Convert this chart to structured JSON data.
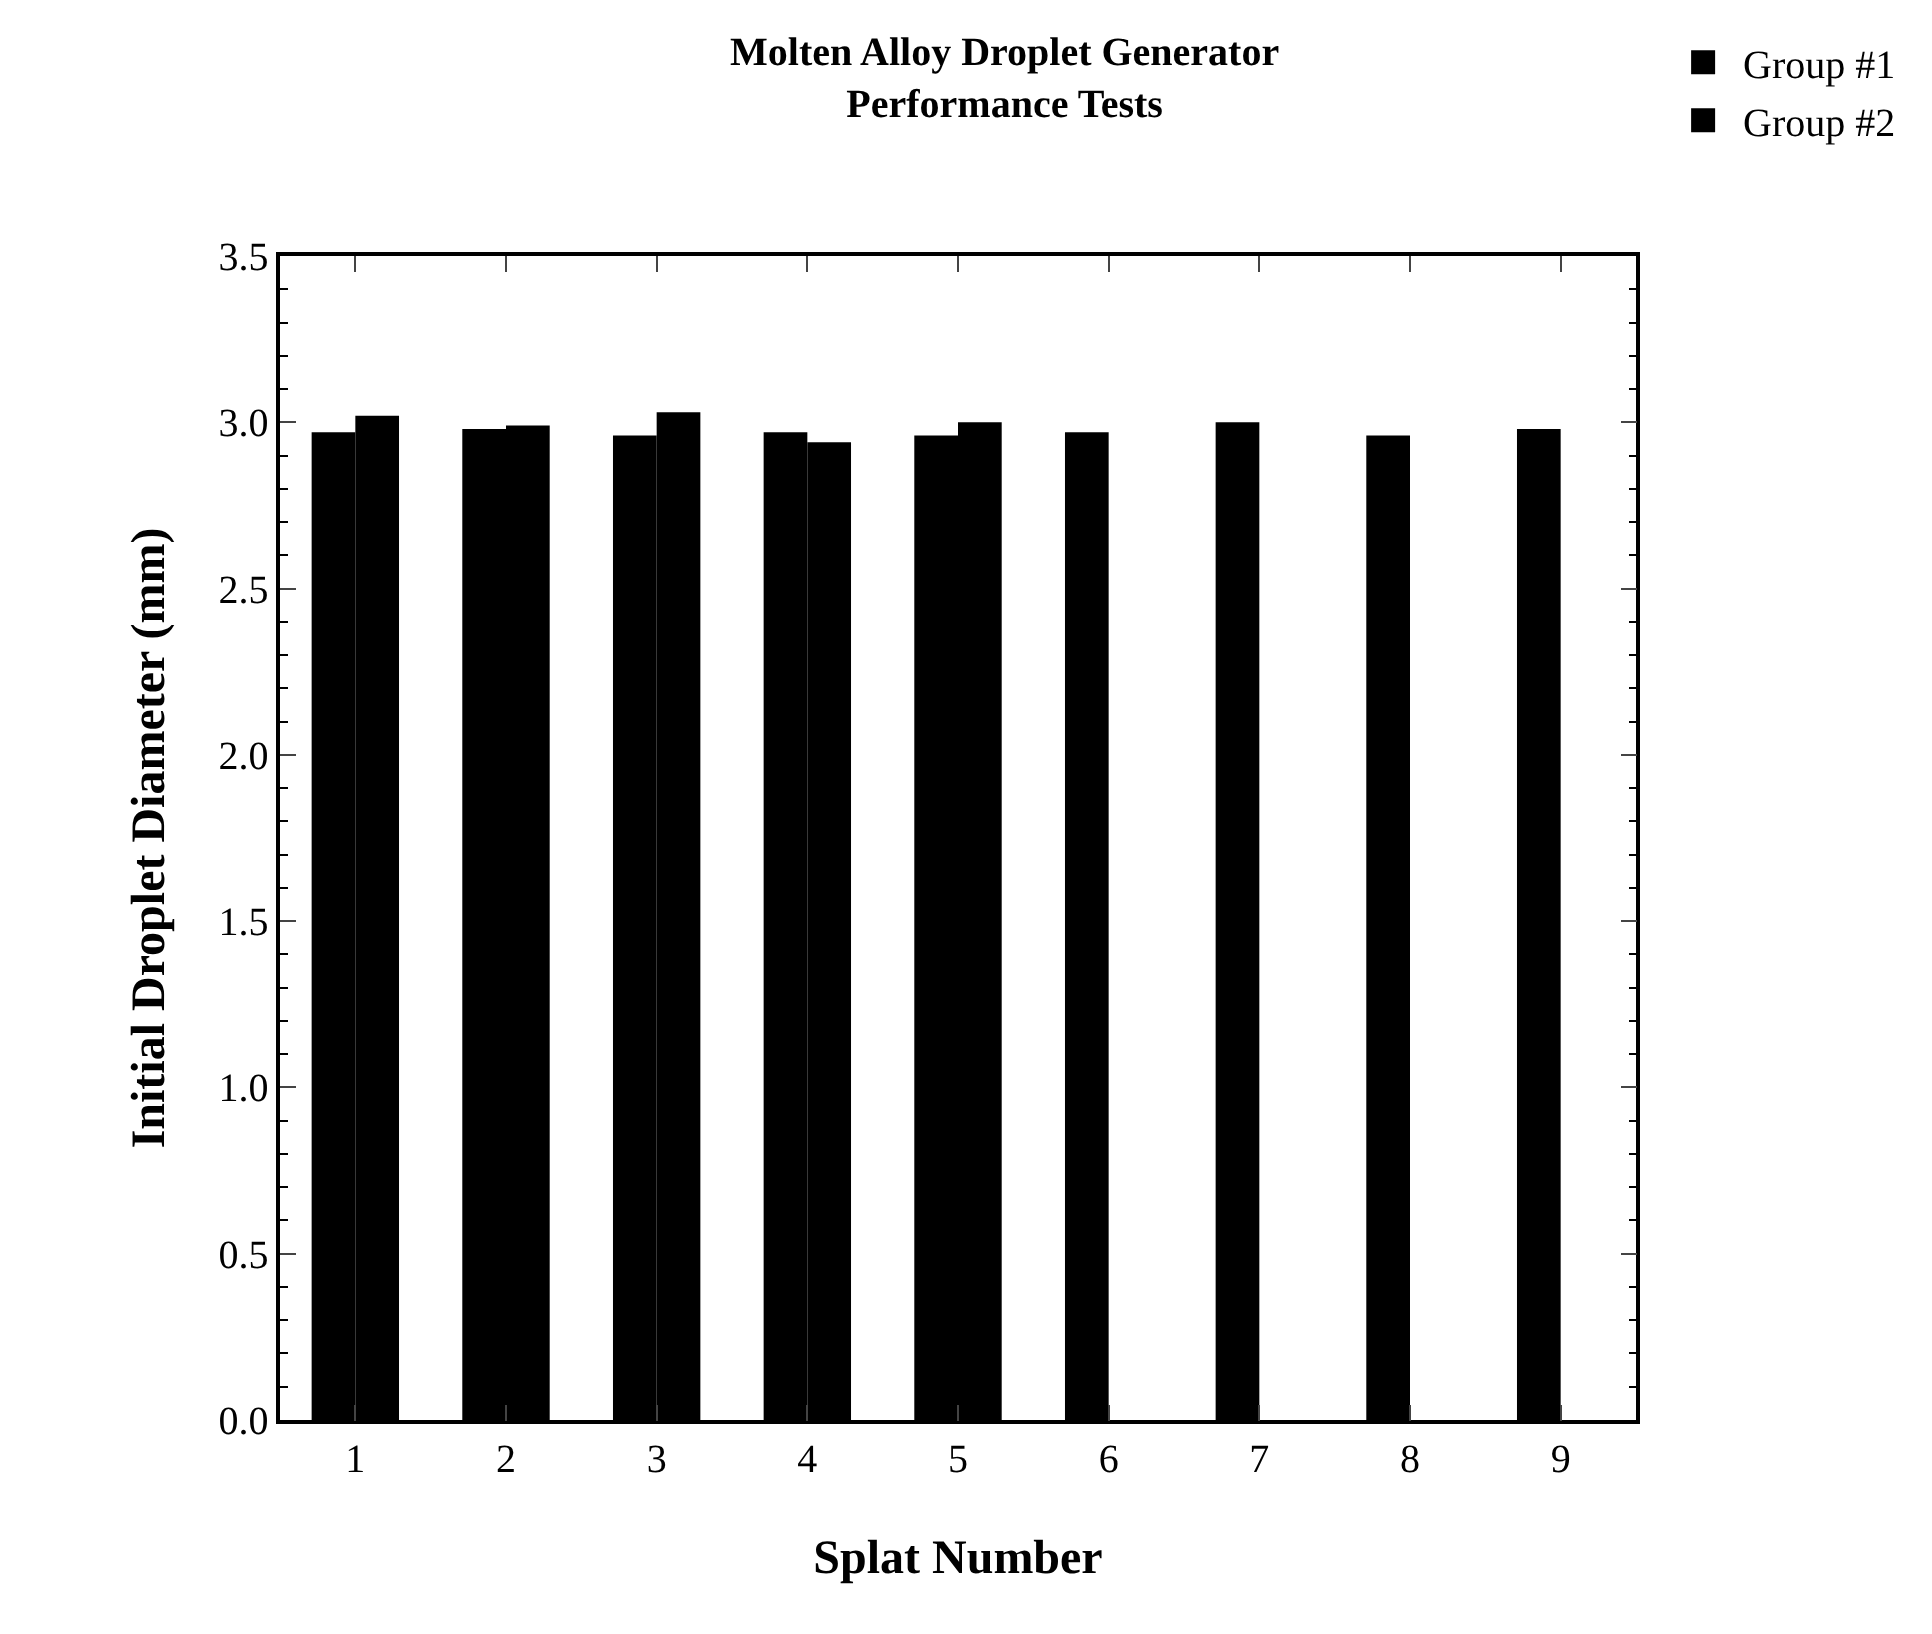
{
  "chart_data": {
    "type": "bar",
    "title": "Molten Alloy Droplet Generator\nPerformance Tests",
    "xlabel": "Splat Number",
    "ylabel": "Initial Droplet Diameter (mm)",
    "categories": [
      "1",
      "2",
      "3",
      "4",
      "5",
      "6",
      "7",
      "8",
      "9"
    ],
    "series": [
      {
        "name": "Group #1",
        "color": "#000000",
        "values": [
          2.97,
          2.98,
          2.96,
          2.97,
          2.96,
          2.97,
          3.0,
          2.96,
          2.98
        ]
      },
      {
        "name": "Group #2",
        "color": "#000000",
        "values": [
          3.02,
          2.99,
          3.03,
          2.94,
          3.0,
          null,
          null,
          null,
          null
        ]
      }
    ],
    "ylim": [
      0,
      3.5
    ],
    "yticks": [
      {
        "value": 0,
        "label": "0.0"
      },
      0.5,
      {
        "value": 1,
        "label": "1.0"
      },
      1.5,
      {
        "value": 2,
        "label": "2.0"
      },
      2.5,
      {
        "value": 3,
        "label": "3.0"
      },
      3.5
    ],
    "grid": false,
    "legend": "top right"
  }
}
